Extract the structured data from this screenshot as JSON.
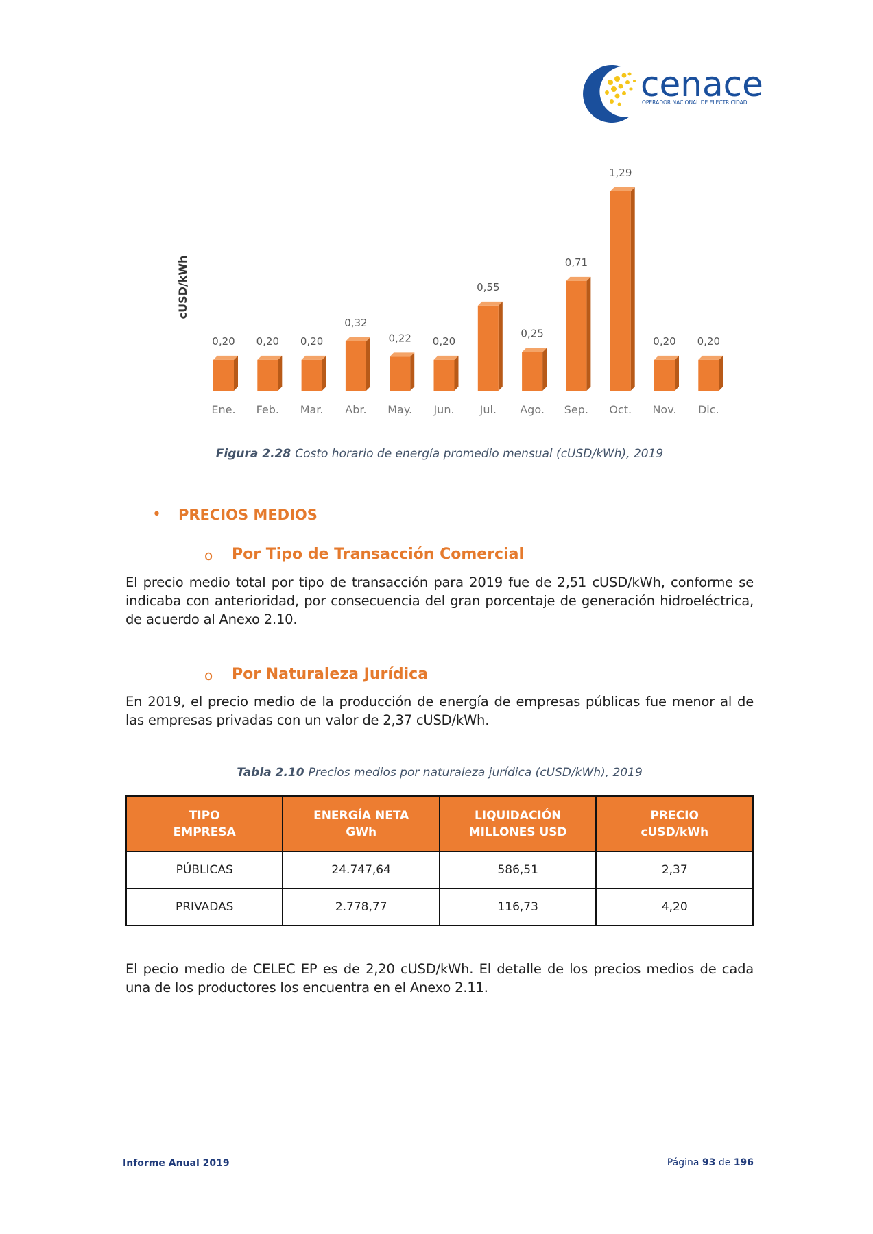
{
  "header": {
    "logo_name": "cenace",
    "logo_tagline": "OPERADOR NACIONAL DE ELECTRICIDAD"
  },
  "chart_data": {
    "type": "bar",
    "y_label": "cUSD/kWh",
    "categories": [
      "Ene.",
      "Feb.",
      "Mar.",
      "Abr.",
      "May.",
      "Jun.",
      "Jul.",
      "Ago.",
      "Sep.",
      "Oct.",
      "Nov.",
      "Dic."
    ],
    "values": [
      0.2,
      0.2,
      0.2,
      0.32,
      0.22,
      0.2,
      0.55,
      0.25,
      0.71,
      1.29,
      0.2,
      0.2
    ],
    "value_labels": [
      "0,20",
      "0,20",
      "0,20",
      "0,32",
      "0,22",
      "0,20",
      "0,55",
      "0,25",
      "0,71",
      "1,29",
      "0,20",
      "0,20"
    ],
    "color": "#ed7d31"
  },
  "figure_caption": {
    "label": "Figura 2.28",
    "text": "Costo horario de energía promedio mensual (cUSD/kWh), 2019"
  },
  "heading": "PRECIOS MEDIOS",
  "subsections": [
    {
      "title": "Por Tipo de Transacción Comercial",
      "paragraph": "El precio medio total por tipo de transacción para 2019 fue de 2,51 cUSD/kWh, conforme se indicaba con anterioridad, por consecuencia del gran porcentaje de generación hidroeléctrica, de acuerdo al Anexo 2.10."
    },
    {
      "title": "Por Naturaleza Jurídica",
      "paragraph": "En 2019, el precio medio de la producción de energía de empresas públicas fue menor al de las empresas privadas con un valor de 2,37 cUSD/kWh."
    }
  ],
  "table_caption": {
    "label": "Tabla 2.10",
    "text": "Precios medios por naturaleza jurídica (cUSD/kWh), 2019"
  },
  "table": {
    "header": [
      [
        "TIPO",
        "EMPRESA"
      ],
      [
        "ENERGÍA NETA",
        "GWh"
      ],
      [
        "LIQUIDACIÓN",
        "MILLONES USD"
      ],
      [
        "PRECIO",
        "cUSD/kWh"
      ]
    ],
    "rows": [
      [
        "PÚBLICAS",
        "24.747,64",
        "586,51",
        "2,37"
      ],
      [
        "PRIVADAS",
        "2.778,77",
        "116,73",
        "4,20"
      ]
    ]
  },
  "closing_paragraph": "El pecio medio de CELEC EP es de 2,20 cUSD/kWh. El detalle de los precios medios de cada una de los productores los encuentra en el Anexo 2.11.",
  "footer": {
    "left": "Informe Anual 2019",
    "page_label": "Página",
    "page": "93",
    "of": "de",
    "total": "196"
  }
}
